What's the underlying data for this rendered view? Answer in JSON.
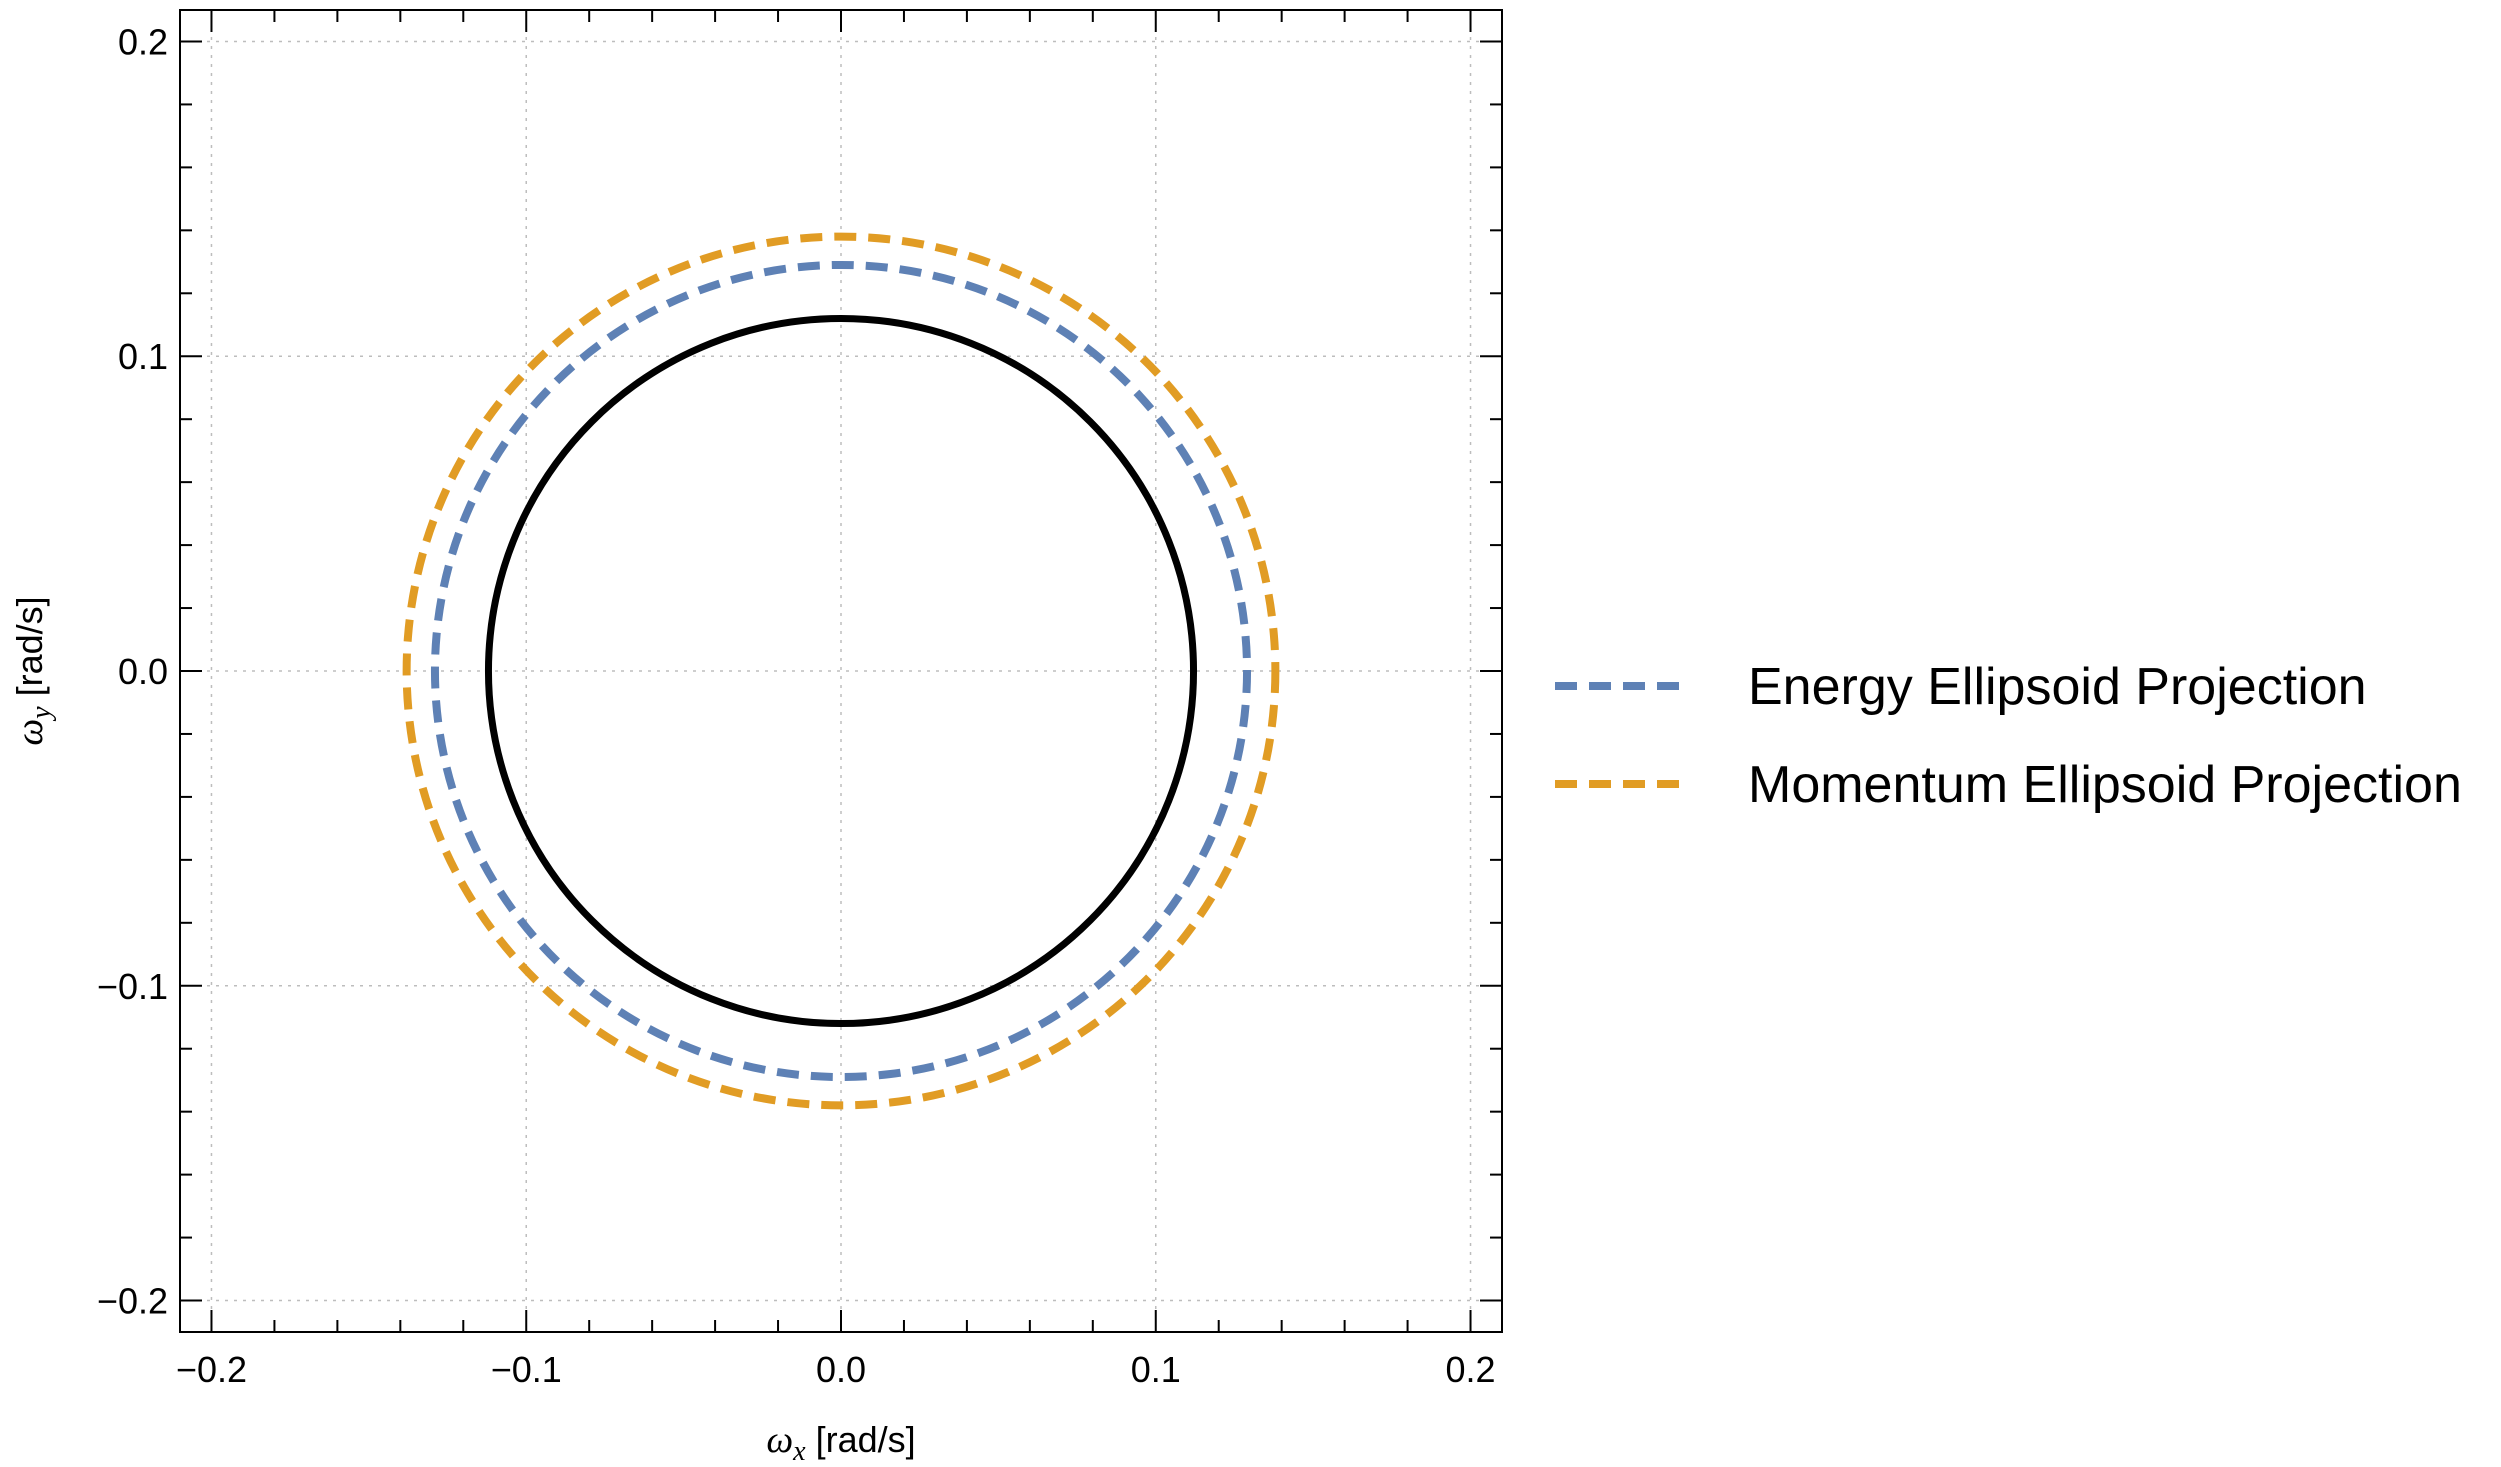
{
  "chart_data": {
    "type": "line",
    "title": "",
    "xlabel": {
      "symbol": "ω",
      "sub": "x",
      "unit": "[rad/s]"
    },
    "ylabel": {
      "symbol": "ω",
      "sub": "y",
      "unit": "[rad/s]"
    },
    "xlim": [
      -0.21,
      0.21
    ],
    "ylim": [
      -0.21,
      0.21
    ],
    "x_ticks": [
      {
        "value": -0.2,
        "label": "−0.2"
      },
      {
        "value": -0.1,
        "label": "−0.1"
      },
      {
        "value": 0.0,
        "label": "0.0"
      },
      {
        "value": 0.1,
        "label": "0.1"
      },
      {
        "value": 0.2,
        "label": "0.2"
      }
    ],
    "y_ticks": [
      {
        "value": -0.2,
        "label": "−0.2"
      },
      {
        "value": -0.1,
        "label": "−0.1"
      },
      {
        "value": 0.0,
        "label": "0.0"
      },
      {
        "value": 0.1,
        "label": "0.1"
      },
      {
        "value": 0.2,
        "label": "0.2"
      }
    ],
    "grid": true,
    "legend_position": "right",
    "series": [
      {
        "name": "",
        "shape": "circle",
        "center": [
          0,
          0
        ],
        "radius": 0.112,
        "color": "#000000",
        "style": "solid",
        "in_legend": false
      },
      {
        "name": "Energy Ellipsoid Projection",
        "shape": "circle",
        "center": [
          0,
          0
        ],
        "radius": 0.129,
        "color": "#5e81b5",
        "style": "dashed",
        "in_legend": true
      },
      {
        "name": "Momentum Ellipsoid Projection",
        "shape": "circle",
        "center": [
          0,
          0
        ],
        "radius": 0.138,
        "color": "#e19c24",
        "style": "dashed",
        "in_legend": true
      }
    ]
  }
}
